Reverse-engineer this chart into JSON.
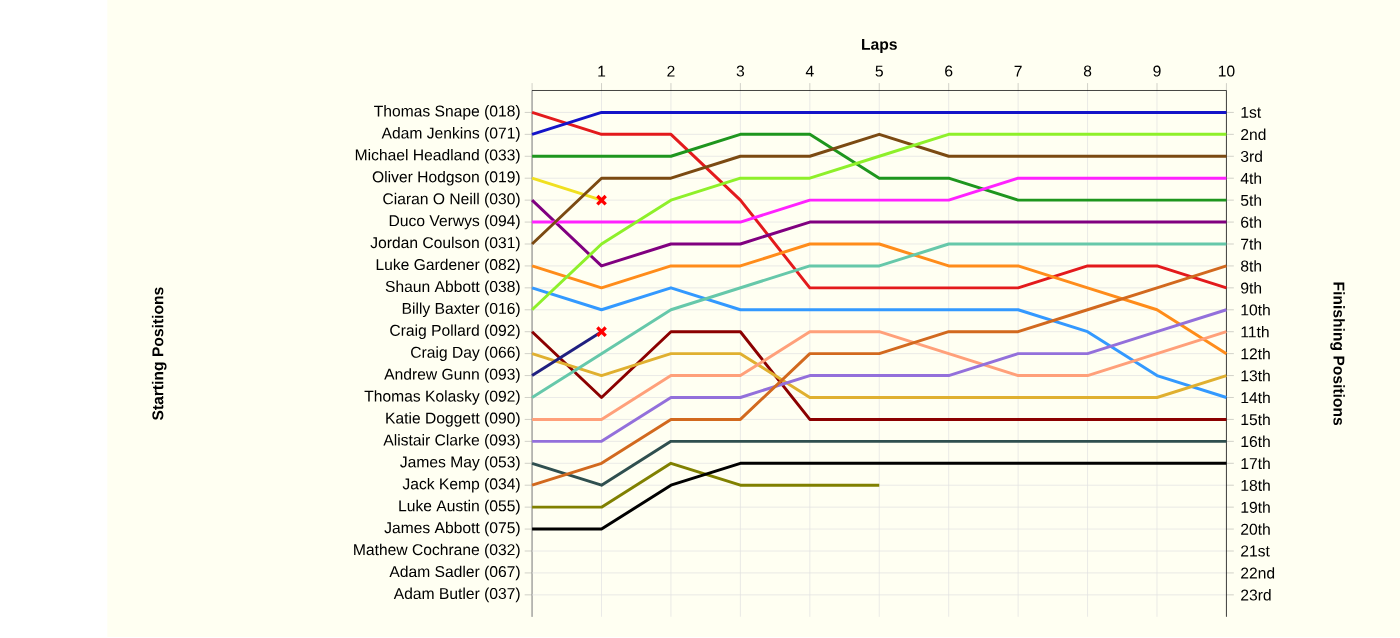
{
  "chart_data": {
    "type": "line",
    "xlabel": "Laps",
    "ylabel": "Finishing Positions",
    "x": [
      0,
      1,
      2,
      3,
      4,
      5,
      6,
      7,
      8,
      9,
      10
    ],
    "xlim": [
      0,
      10
    ],
    "xticks": [
      {
        "value": 0,
        "label": null
      },
      1,
      2,
      3,
      4,
      5,
      6,
      7,
      8,
      9,
      10
    ],
    "ylim": [
      24,
      0
    ],
    "yticks": [
      {
        "value": 1,
        "label": "1st"
      },
      {
        "value": 2,
        "label": "2nd"
      },
      {
        "value": 3,
        "label": "3rd"
      },
      {
        "value": 4,
        "label": "4th"
      },
      {
        "value": 5,
        "label": "5th"
      },
      {
        "value": 6,
        "label": "6th"
      },
      {
        "value": 7,
        "label": "7th"
      },
      {
        "value": 8,
        "label": "8th"
      },
      {
        "value": 9,
        "label": "9th"
      },
      {
        "value": 10,
        "label": "10th"
      },
      {
        "value": 11,
        "label": "11th"
      },
      {
        "value": 12,
        "label": "12th"
      },
      {
        "value": 13,
        "label": "13th"
      },
      {
        "value": 14,
        "label": "14th"
      },
      {
        "value": 15,
        "label": "15th"
      },
      {
        "value": 16,
        "label": "16th"
      },
      {
        "value": 17,
        "label": "17th"
      },
      {
        "value": 18,
        "label": "18th"
      },
      {
        "value": 19,
        "label": "19th"
      },
      {
        "value": 20,
        "label": "20th"
      },
      {
        "value": 21,
        "label": "21st"
      },
      {
        "value": 22,
        "label": "22nd"
      },
      {
        "value": 23,
        "label": "23rd"
      }
    ],
    "annotations": [
      "Thomas Snape (018)",
      "Adam Jenkins (071)",
      "Michael Headland (033)",
      "Oliver Hodgson (019)",
      "Ciaran O Neill (030)",
      "Duco Verwys (094)",
      "Jordan Coulson (031)",
      "Luke Gardener (082)",
      "Shaun Abbott (038)",
      "Billy Baxter (016)",
      "Craig Pollard (092)",
      "Craig Day (066)",
      "Andrew Gunn (093)",
      "Thomas Kolasky (092)",
      "Katie Doggett (090)",
      "Alistair Clarke (093)",
      "James May (053)",
      "Jack Kemp (034)",
      "Luke Austin (055)",
      "James Abbott (075)",
      "Mathew Cochrane (032)",
      "Adam Sadler (067)",
      "Adam Butler (037)",
      "Starting Positions"
    ],
    "grid": true,
    "marker": "none",
    "series": [
      {
        "color": "#e31a1c",
        "values": [
          1,
          2,
          2,
          5,
          9,
          9,
          9,
          9,
          8,
          8,
          9
        ]
      },
      {
        "color": "#1414c8",
        "values": [
          2,
          1,
          1,
          1,
          1,
          1,
          1,
          1,
          1,
          1,
          1
        ]
      },
      {
        "color": "#1e961e",
        "values": [
          3,
          3,
          3,
          2,
          2,
          4,
          4,
          5,
          5,
          5,
          5
        ]
      },
      {
        "color": "#f0e020",
        "values": [
          4,
          5,
          null,
          null,
          null,
          null,
          null,
          null,
          null,
          null,
          null
        ]
      },
      {
        "color": "#800080",
        "values": [
          5,
          8,
          7,
          7,
          6,
          6,
          6,
          6,
          6,
          6,
          6
        ]
      },
      {
        "color": "#ff22ff",
        "values": [
          6,
          6,
          6,
          6,
          5,
          5,
          5,
          4,
          4,
          4,
          4
        ]
      },
      {
        "color": "#7b4a12",
        "values": [
          7,
          4,
          4,
          3,
          3,
          2,
          3,
          3,
          3,
          3,
          3
        ]
      },
      {
        "color": "#ff8c1a",
        "values": [
          8,
          9,
          8,
          8,
          7,
          7,
          8,
          8,
          9,
          10,
          12
        ]
      },
      {
        "color": "#3399ff",
        "values": [
          9,
          10,
          9,
          10,
          10,
          10,
          10,
          10,
          11,
          13,
          14
        ]
      },
      {
        "color": "#8ef02a",
        "values": [
          10,
          7,
          5,
          4,
          4,
          3,
          2,
          2,
          2,
          2,
          2
        ]
      },
      {
        "color": "#8b0000",
        "values": [
          11,
          14,
          11,
          11,
          15,
          15,
          15,
          15,
          15,
          15,
          15
        ]
      },
      {
        "color": "#e0b030",
        "values": [
          12,
          13,
          12,
          12,
          14,
          14,
          14,
          14,
          14,
          14,
          13
        ]
      },
      {
        "color": "#202080",
        "values": [
          13,
          11,
          null,
          null,
          null,
          null,
          null,
          null,
          null,
          null,
          null
        ]
      },
      {
        "color": "#66c8aa",
        "values": [
          14,
          12,
          10,
          9,
          8,
          8,
          7,
          7,
          7,
          7,
          7
        ]
      },
      {
        "color": "#ffa07a",
        "values": [
          15,
          15,
          13,
          13,
          11,
          11,
          12,
          13,
          13,
          12,
          11
        ]
      },
      {
        "color": "#9370db",
        "values": [
          16,
          16,
          14,
          14,
          13,
          13,
          13,
          12,
          12,
          11,
          10
        ]
      },
      {
        "color": "#2f4f4f",
        "values": [
          17,
          18,
          16,
          16,
          16,
          16,
          16,
          16,
          16,
          16,
          16
        ]
      },
      {
        "color": "#d2691e",
        "values": [
          18,
          17,
          15,
          15,
          12,
          12,
          11,
          11,
          10,
          9,
          8
        ]
      },
      {
        "color": "#808000",
        "values": [
          19,
          19,
          17,
          18,
          18,
          18,
          null,
          null,
          null,
          null,
          null
        ]
      },
      {
        "color": "#000000",
        "values": [
          20,
          20,
          18,
          17,
          17,
          17,
          17,
          17,
          17,
          17,
          17
        ]
      },
      {
        "type": "scatter",
        "marker": "cross",
        "color": "#ff0000",
        "x": [
          1,
          1
        ],
        "values": [
          5,
          11
        ]
      }
    ]
  }
}
